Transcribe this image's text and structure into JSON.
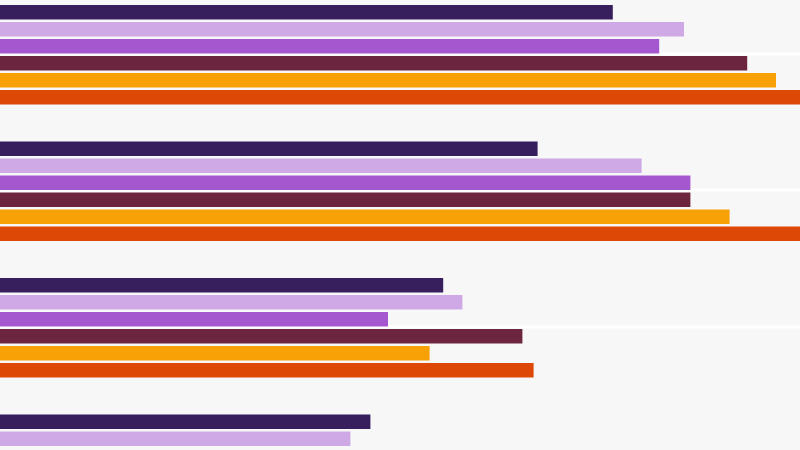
{
  "chart_data": {
    "type": "bar",
    "orientation": "horizontal",
    "title": "",
    "xlabel": "",
    "ylabel": "",
    "xlim": [
      0,
      100
    ],
    "grid": true,
    "legend": "none",
    "categories": [
      "",
      "",
      "",
      ""
    ],
    "series": [
      {
        "color": "#371f5e",
        "values": [
          76.6,
          67.2,
          55.4,
          46.3
        ]
      },
      {
        "color": "#cfa8e6",
        "values": [
          85.5,
          80.2,
          57.8,
          43.8
        ]
      },
      {
        "color": "#a557cf",
        "values": [
          82.4,
          86.3,
          48.5,
          null
        ]
      },
      {
        "color": "#6c253f",
        "values": [
          93.4,
          86.3,
          65.3,
          null
        ]
      },
      {
        "color": "#f8a107",
        "values": [
          97.0,
          91.2,
          53.7,
          null
        ]
      },
      {
        "color": "#de4806",
        "values": [
          100.0,
          100.0,
          66.7,
          null
        ]
      }
    ]
  }
}
